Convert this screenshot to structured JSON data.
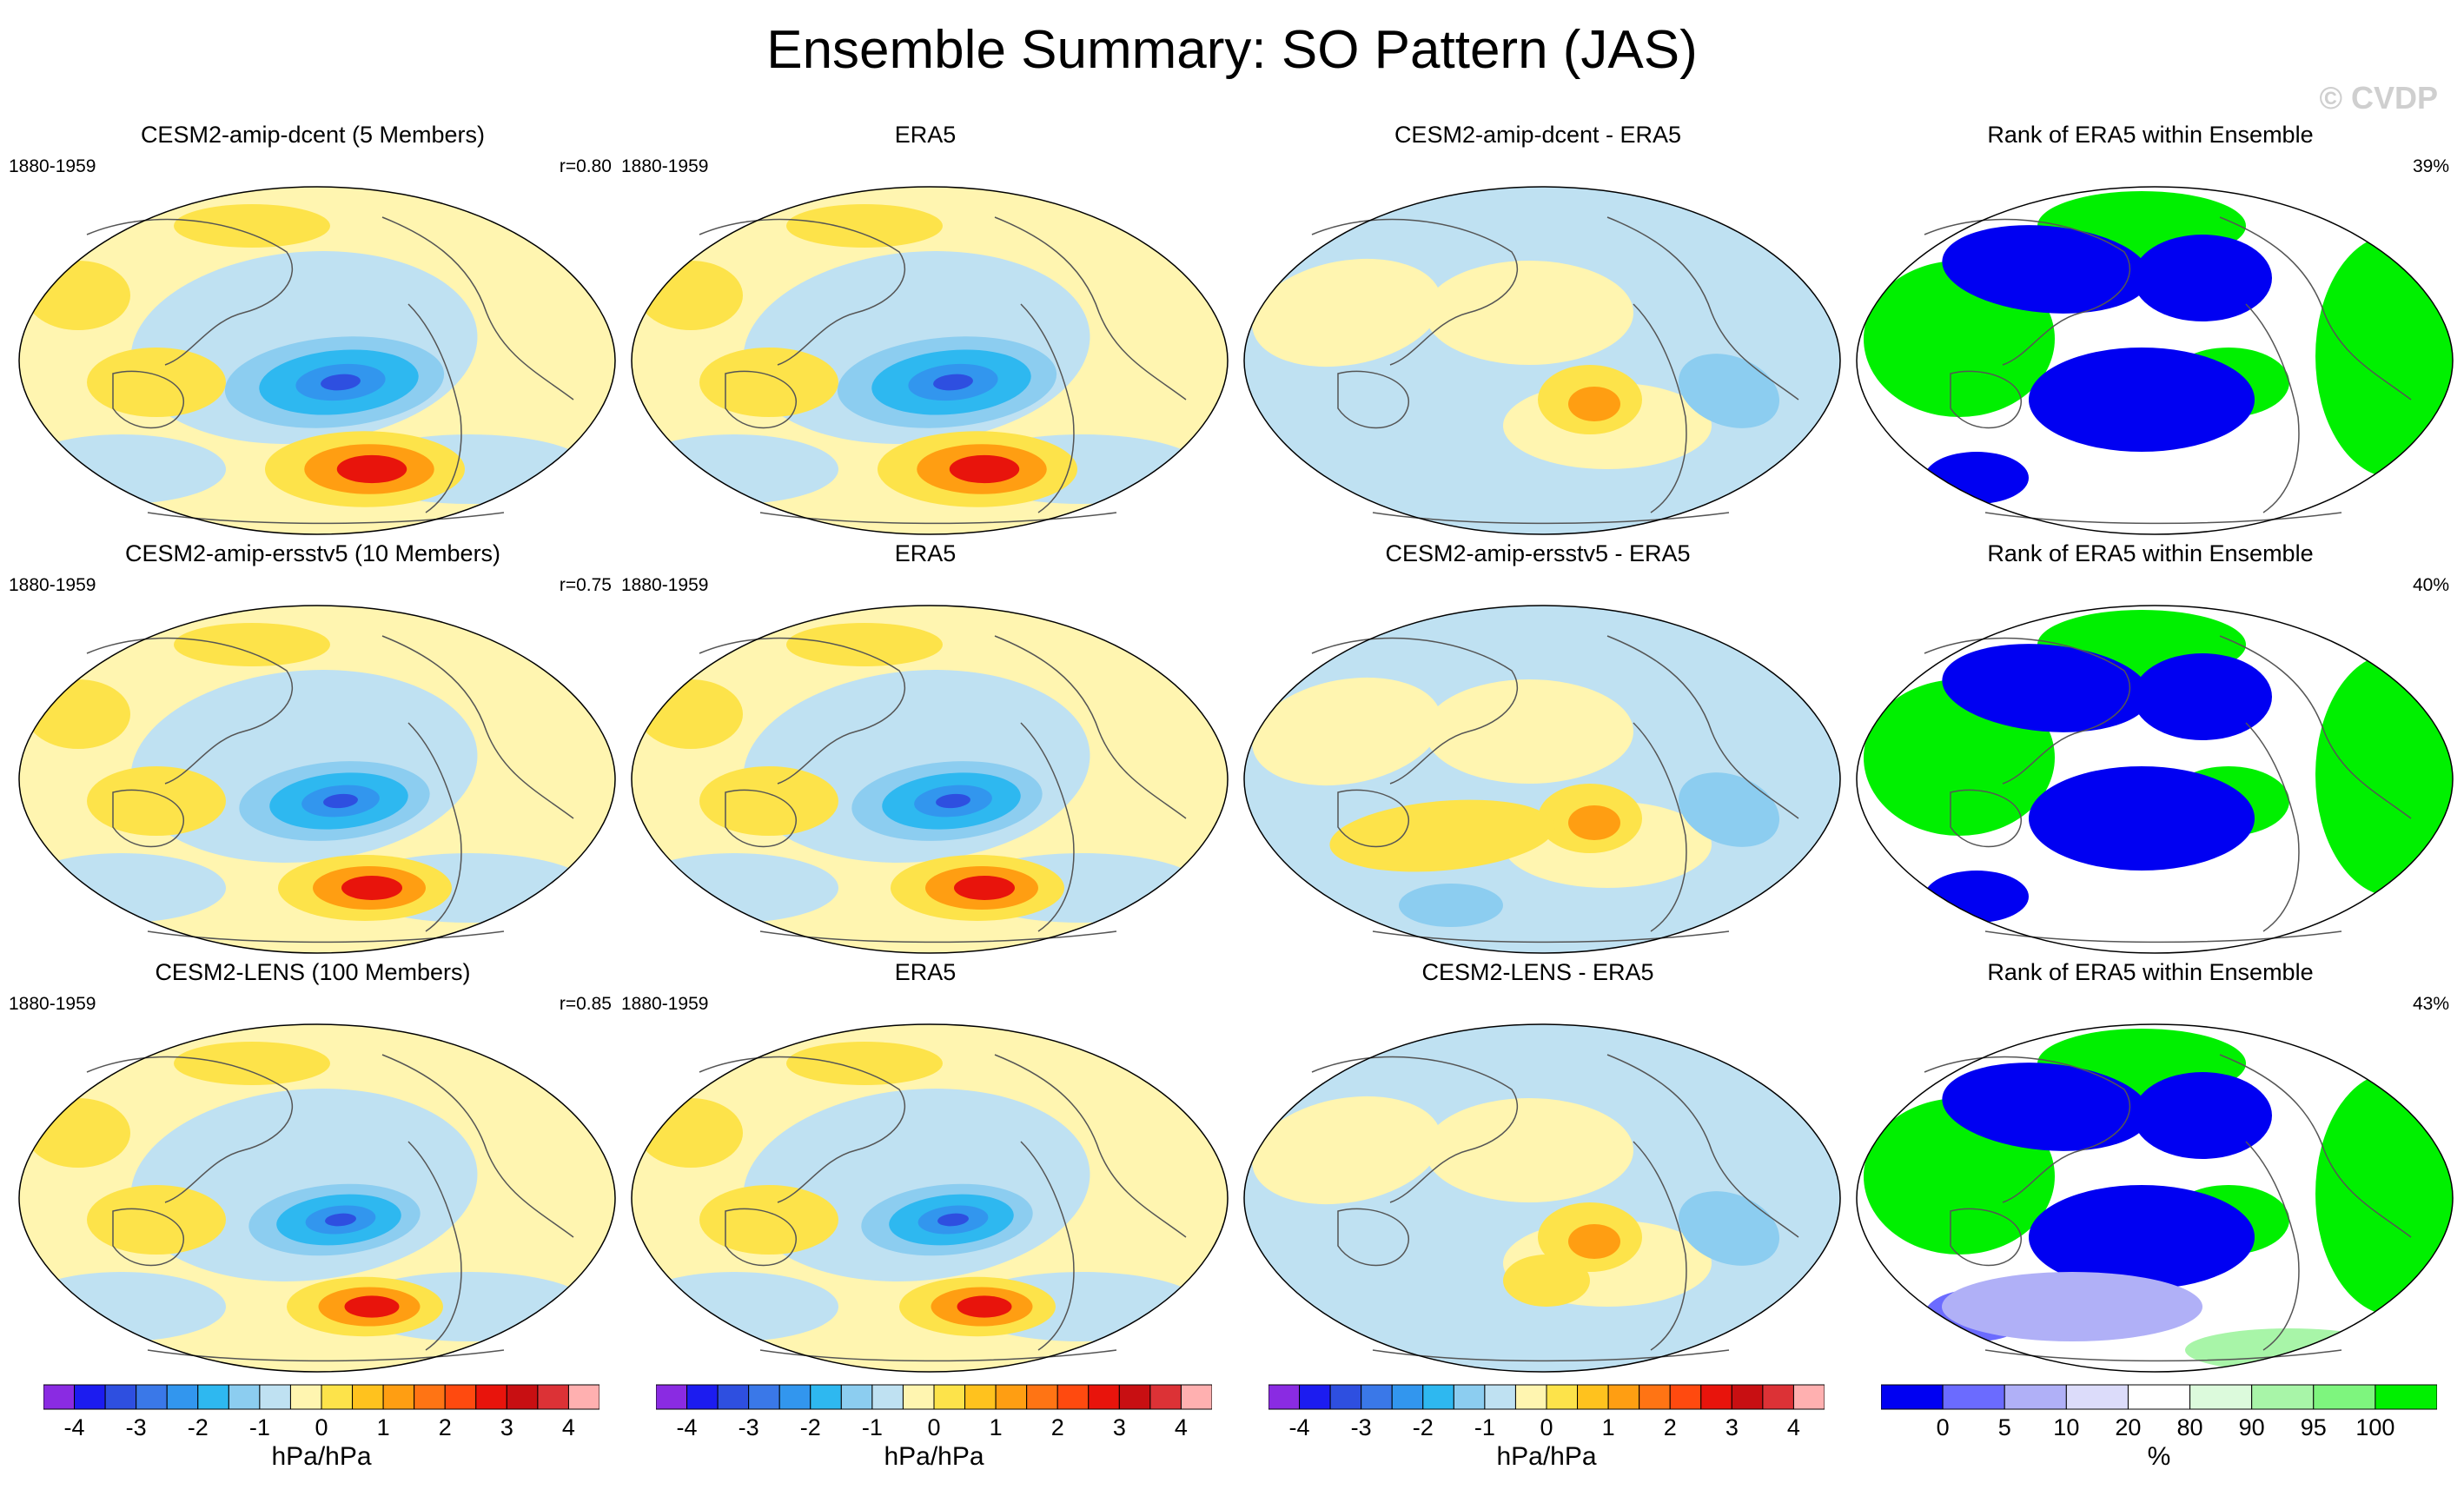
{
  "title": "Ensemble Summary: SO Pattern (JAS)",
  "credit": "© CVDP",
  "colors": {
    "diverging": [
      "#8a2be2",
      "#1c1cf0",
      "#2e4fe0",
      "#3a78e8",
      "#3296ee",
      "#2eb8f0",
      "#8ccdf0",
      "#bfe1f2",
      "#fff5b0",
      "#fde34a",
      "#ffc21e",
      "#ff9e12",
      "#ff7414",
      "#ff4a0f",
      "#e8140c",
      "#c80f12",
      "#dc3236",
      "#ffb0b0"
    ],
    "rank": [
      "#0000f2",
      "#6b6bff",
      "#b0b0f7",
      "#dcdcfa",
      "#ffffff",
      "#dcfadc",
      "#a8f5a8",
      "#7ef57e",
      "#00f000"
    ]
  },
  "rows": [
    {
      "model": {
        "title": "CESM2-amip-dcent (5 Members)",
        "period": "1880-1959",
        "corr": "r=0.80"
      },
      "obs": {
        "title": "ERA5",
        "period": "1880-1959"
      },
      "diff": {
        "title": "CESM2-amip-dcent - ERA5"
      },
      "rank": {
        "title": "Rank of ERA5 within Ensemble",
        "pct": "39%"
      }
    },
    {
      "model": {
        "title": "CESM2-amip-ersstv5 (10 Members)",
        "period": "1880-1959",
        "corr": "r=0.75"
      },
      "obs": {
        "title": "ERA5",
        "period": "1880-1959"
      },
      "diff": {
        "title": "CESM2-amip-ersstv5 - ERA5"
      },
      "rank": {
        "title": "Rank of ERA5 within Ensemble",
        "pct": "40%"
      }
    },
    {
      "model": {
        "title": "CESM2-LENS (100 Members)",
        "period": "1880-1959",
        "corr": "r=0.85"
      },
      "obs": {
        "title": "ERA5",
        "period": "1880-1959"
      },
      "diff": {
        "title": "CESM2-LENS - ERA5"
      },
      "rank": {
        "title": "Rank of ERA5 within Ensemble",
        "pct": "43%"
      }
    }
  ],
  "colorbars": {
    "pattern": {
      "ticks": [
        "-4",
        "-3",
        "-2",
        "-1",
        "0",
        "1",
        "2",
        "3",
        "4"
      ],
      "unit": "hPa/hPa"
    },
    "rank": {
      "ticks": [
        "0",
        "5",
        "10",
        "20",
        "80",
        "90",
        "95",
        "100"
      ],
      "unit": "%"
    }
  },
  "chart_data": {
    "type": "heatmap",
    "title": "Ensemble Summary: SO Pattern (JAS)",
    "projection": "Robinson",
    "variable": "SO pattern regression",
    "units": "hPa/hPa",
    "contour_levels": [
      -4.0,
      -3.5,
      -3.0,
      -2.5,
      -2.0,
      -1.5,
      -1.0,
      -0.5,
      0,
      0.5,
      1.0,
      1.5,
      2.0,
      2.5,
      3.0,
      3.5,
      4.0
    ],
    "rank_levels": [
      0,
      5,
      10,
      20,
      80,
      90,
      95,
      100
    ],
    "panels": [
      {
        "row": 1,
        "col": 1,
        "title": "CESM2-amip-dcent (5 Members)",
        "period": "1880-1959",
        "pattern_correlation": 0.8,
        "kind": "ensemble mean"
      },
      {
        "row": 1,
        "col": 2,
        "title": "ERA5",
        "period": "1880-1959",
        "kind": "observations"
      },
      {
        "row": 1,
        "col": 3,
        "title": "CESM2-amip-dcent - ERA5",
        "kind": "difference"
      },
      {
        "row": 1,
        "col": 4,
        "title": "Rank of ERA5 within Ensemble",
        "percent_area": 39,
        "kind": "rank"
      },
      {
        "row": 2,
        "col": 1,
        "title": "CESM2-amip-ersstv5 (10 Members)",
        "period": "1880-1959",
        "pattern_correlation": 0.75,
        "kind": "ensemble mean"
      },
      {
        "row": 2,
        "col": 2,
        "title": "ERA5",
        "period": "1880-1959",
        "kind": "observations"
      },
      {
        "row": 2,
        "col": 3,
        "title": "CESM2-amip-ersstv5 - ERA5",
        "kind": "difference"
      },
      {
        "row": 2,
        "col": 4,
        "title": "Rank of ERA5 within Ensemble",
        "percent_area": 40,
        "kind": "rank"
      },
      {
        "row": 3,
        "col": 1,
        "title": "CESM2-LENS (100 Members)",
        "period": "1880-1959",
        "pattern_correlation": 0.85,
        "kind": "ensemble mean"
      },
      {
        "row": 3,
        "col": 2,
        "title": "ERA5",
        "period": "1880-1959",
        "kind": "observations"
      },
      {
        "row": 3,
        "col": 3,
        "title": "CESM2-LENS - ERA5",
        "kind": "difference"
      },
      {
        "row": 3,
        "col": 4,
        "title": "Rank of ERA5 within Ensemble",
        "percent_area": 43,
        "kind": "rank"
      }
    ]
  }
}
